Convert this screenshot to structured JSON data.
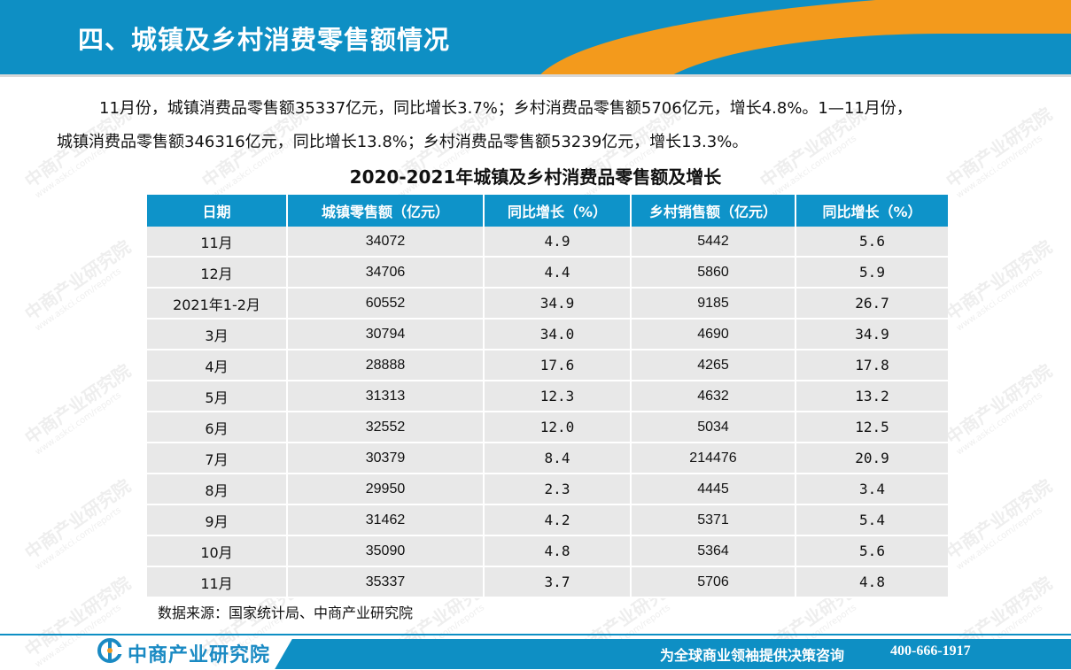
{
  "header": {
    "title": "四、城镇及乡村消费零售额情况"
  },
  "paragraph": {
    "line1": "11月份，城镇消费品零售额35337亿元，同比增长3.7%；乡村消费品零售额5706亿元，增长4.8%。1—11月份，",
    "line2": "城镇消费品零售额346316亿元，同比增长13.8%；乡村消费品零售额53239亿元，增长13.3%。"
  },
  "table": {
    "title": "2020-2021年城镇及乡村消费品零售额及增长",
    "headers": [
      "日期",
      "城镇零售额（亿元）",
      "同比增长（%）",
      "乡村销售额（亿元）",
      "同比增长（%）"
    ],
    "rows": [
      [
        "11月",
        "34072",
        "4.9",
        "5442",
        "5.6"
      ],
      [
        "12月",
        "34706",
        "4.4",
        "5860",
        "5.9"
      ],
      [
        "2021年1-2月",
        "60552",
        "34.9",
        "9185",
        "26.7"
      ],
      [
        "3月",
        "30794",
        "34.0",
        "4690",
        "34.9"
      ],
      [
        "4月",
        "28888",
        "17.6",
        "4265",
        "17.8"
      ],
      [
        "5月",
        "31313",
        "12.3",
        "4632",
        "13.2"
      ],
      [
        "6月",
        "32552",
        "12.0",
        "5034",
        "12.5"
      ],
      [
        "7月",
        "30379",
        "8.4",
        "214476",
        "20.9"
      ],
      [
        "8月",
        "29950",
        "2.3",
        "4445",
        "3.4"
      ],
      [
        "9月",
        "31462",
        "4.2",
        "5371",
        "5.4"
      ],
      [
        "10月",
        "35090",
        "4.8",
        "5364",
        "5.6"
      ],
      [
        "11月",
        "35337",
        "3.7",
        "5706",
        "4.8"
      ]
    ],
    "source": "数据来源：国家统计局、中商产业研究院"
  },
  "footer": {
    "logo_text": "中商产业研究院",
    "slogan": "为全球商业领袖提供决策咨询",
    "phone": "400-666-1917"
  },
  "watermark": {
    "name": "中商产业研究院",
    "url": "www.askci.com/reports"
  },
  "colors": {
    "brand_blue": "#0e8fc4",
    "accent_orange": "#f39a1c",
    "row_gray": "#e8e8e8"
  }
}
